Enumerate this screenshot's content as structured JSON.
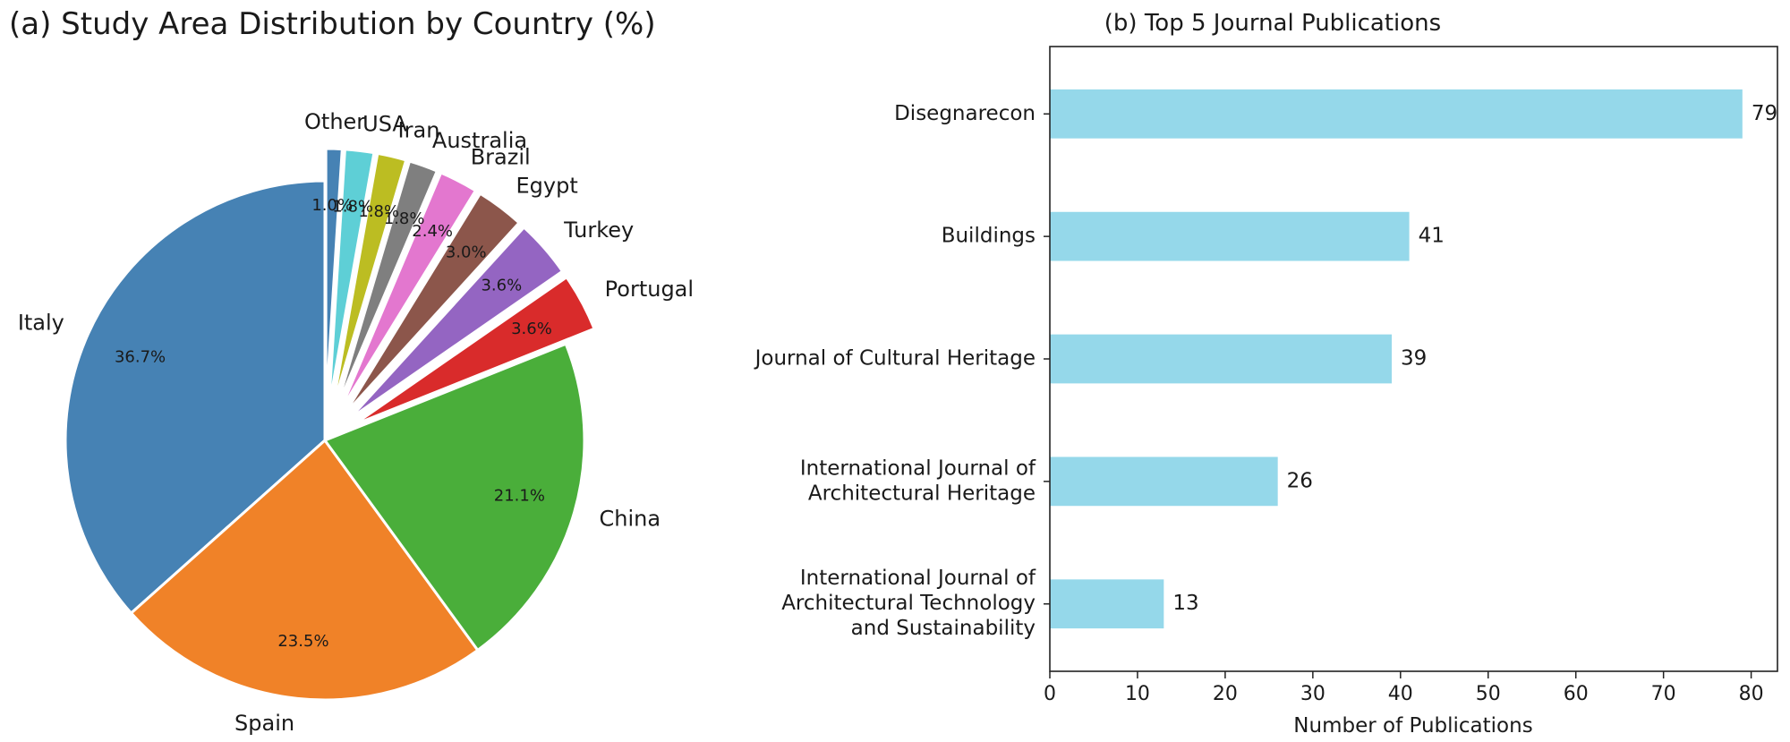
{
  "chart_data": [
    {
      "type": "pie",
      "title": "(a) Study Area Distribution by Country (%)",
      "slices": [
        {
          "label": "Italy",
          "value": 36.7,
          "pct_label": "36.7%",
          "color": "#4682b4",
          "exploded": false
        },
        {
          "label": "Spain",
          "value": 23.5,
          "pct_label": "23.5%",
          "color": "#f08228",
          "exploded": false
        },
        {
          "label": "China",
          "value": 21.1,
          "pct_label": "21.1%",
          "color": "#4aae3a",
          "exploded": false
        },
        {
          "label": "Portugal",
          "value": 3.6,
          "pct_label": "3.6%",
          "color": "#d92b2b",
          "exploded": true
        },
        {
          "label": "Turkey",
          "value": 3.6,
          "pct_label": "3.6%",
          "color": "#9465c2",
          "exploded": true
        },
        {
          "label": "Egypt",
          "value": 3.0,
          "pct_label": "3.0%",
          "color": "#8c564b",
          "exploded": true
        },
        {
          "label": "Brazil",
          "value": 2.4,
          "pct_label": "2.4%",
          "color": "#e377cf",
          "exploded": true
        },
        {
          "label": "Australia",
          "value": 1.8,
          "pct_label": "1.8%",
          "color": "#7f7f7f",
          "exploded": true
        },
        {
          "label": "Iran",
          "value": 1.8,
          "pct_label": "1.8%",
          "color": "#bcbd22",
          "exploded": true
        },
        {
          "label": "USA",
          "value": 1.8,
          "pct_label": "1.8%",
          "color": "#5ecfd6",
          "exploded": true
        },
        {
          "label": "Other",
          "value": 1.0,
          "pct_label": "1.0%",
          "color": "#4682b4",
          "exploded": true
        }
      ]
    },
    {
      "type": "bar",
      "orientation": "horizontal",
      "title": "(b) Top 5 Journal Publications",
      "categories": [
        "Disegnarecon",
        "Buildings",
        "Journal of Cultural Heritage",
        "International Journal of\nArchitectural Heritage",
        "International Journal of\nArchitectural Technology\nand Sustainability"
      ],
      "values": [
        79,
        41,
        39,
        26,
        13
      ],
      "xlabel": "Number of Publications",
      "ylabel": "",
      "xlim": [
        0,
        83
      ],
      "xticks": [
        0,
        10,
        20,
        30,
        40,
        50,
        60,
        70,
        80
      ],
      "bar_color": "#95d8ea",
      "grid": false
    }
  ]
}
